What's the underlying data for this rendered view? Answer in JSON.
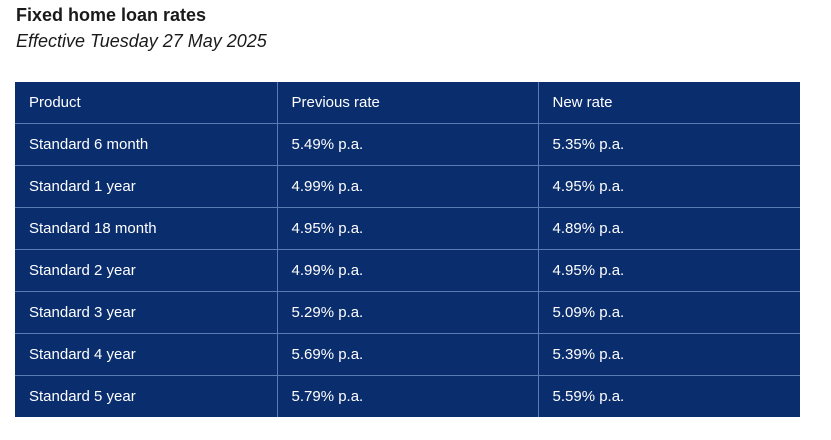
{
  "heading": {
    "title": "Fixed home loan rates",
    "subtitle": "Effective Tuesday 27 May 2025"
  },
  "table": {
    "headers": {
      "product": "Product",
      "previous": "Previous rate",
      "new": "New rate"
    },
    "rows": [
      {
        "product": "Standard 6 month",
        "previous": "5.49% p.a.",
        "new": "5.35% p.a."
      },
      {
        "product": "Standard 1 year",
        "previous": "4.99% p.a.",
        "new": "4.95% p.a."
      },
      {
        "product": "Standard 18 month",
        "previous": "4.95% p.a.",
        "new": "4.89% p.a."
      },
      {
        "product": "Standard 2 year",
        "previous": "4.99% p.a.",
        "new": "4.95% p.a."
      },
      {
        "product": "Standard 3 year",
        "previous": "5.29% p.a.",
        "new": "5.09% p.a."
      },
      {
        "product": "Standard 4 year",
        "previous": "5.69% p.a.",
        "new": "5.39% p.a."
      },
      {
        "product": "Standard 5 year",
        "previous": "5.79% p.a.",
        "new": "5.59% p.a."
      }
    ]
  },
  "colors": {
    "table_bg": "#0a2d6e",
    "table_text": "#ffffff",
    "grid_line": "#5b7bb4"
  }
}
